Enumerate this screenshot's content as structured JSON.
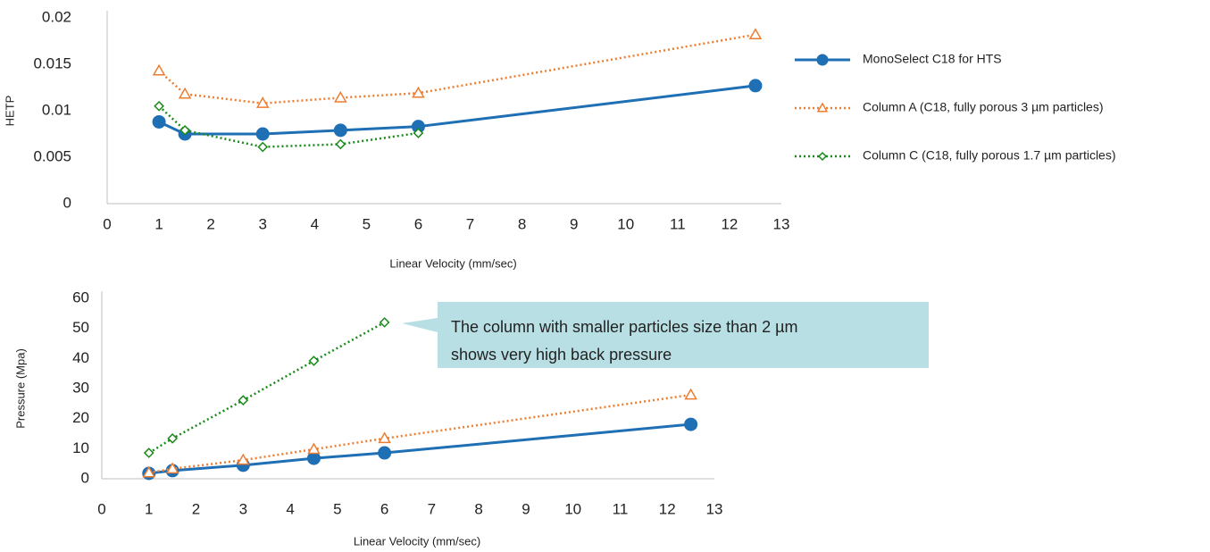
{
  "chart_data": [
    {
      "type": "line",
      "x_label": "Linear Velocity (mm/sec)",
      "y_label": "HETP",
      "xlim": [
        0,
        13
      ],
      "xticks": [
        0,
        1,
        2,
        3,
        4,
        5,
        6,
        7,
        8,
        9,
        10,
        11,
        12,
        13
      ],
      "ylim": [
        0,
        0.02
      ],
      "yticks": [
        0,
        0.005,
        0.01,
        0.015,
        0.02
      ],
      "legend": "right",
      "series": [
        {
          "name": "MonoSelect C18 for HTS",
          "color": "#1f6fb5",
          "marker": "circle",
          "dash": "solid",
          "x": [
            1,
            1.5,
            3,
            4.5,
            6,
            12.5
          ],
          "values": [
            0.0088,
            0.0075,
            0.0075,
            0.0079,
            0.0083,
            0.0127
          ]
        },
        {
          "name": "Column A (C18, fully porous 3 µm particles)",
          "color": "#ed7d31",
          "marker": "triangle",
          "dash": "dotted",
          "x": [
            1,
            1.5,
            3,
            4.5,
            6,
            12.5
          ],
          "values": [
            0.0143,
            0.0118,
            0.0108,
            0.0114,
            0.0119,
            0.0182
          ]
        },
        {
          "name": "Column C (C18, fully porous 1.7 µm particles)",
          "color": "#1a8a1a",
          "marker": "diamond",
          "dash": "dotted",
          "x": [
            1,
            1.5,
            3,
            4.5,
            6
          ],
          "values": [
            0.0105,
            0.0079,
            0.0061,
            0.0064,
            0.0076
          ]
        }
      ]
    },
    {
      "type": "line",
      "x_label": "Linear Velocity (mm/sec)",
      "y_label": "Pressure (Mpa)",
      "xlim": [
        0,
        13
      ],
      "xticks": [
        0,
        1,
        2,
        3,
        4,
        5,
        6,
        7,
        8,
        9,
        10,
        11,
        12,
        13
      ],
      "ylim": [
        0,
        60
      ],
      "yticks": [
        0,
        10,
        20,
        30,
        40,
        50,
        60
      ],
      "annotation": [
        "The column with smaller particles size than 2 µm",
        "shows very high back pressure"
      ],
      "series": [
        {
          "color": "#1f6fb5",
          "marker": "circle",
          "dash": "solid",
          "x": [
            1,
            1.5,
            3,
            4.5,
            6,
            12.5
          ],
          "values": [
            1.8,
            2.7,
            4.5,
            6.8,
            8.6,
            18.1
          ]
        },
        {
          "color": "#ed7d31",
          "marker": "triangle",
          "dash": "dotted",
          "x": [
            1,
            1.5,
            3,
            4.5,
            6,
            12.5
          ],
          "values": [
            2,
            3.3,
            6.2,
            9.8,
            13.4,
            27.9
          ]
        },
        {
          "color": "#1a8a1a",
          "marker": "diamond",
          "dash": "dotted",
          "x": [
            1,
            1.5,
            3,
            4.5,
            6
          ],
          "values": [
            8.6,
            13.4,
            26.1,
            39.2,
            52
          ]
        }
      ]
    }
  ]
}
